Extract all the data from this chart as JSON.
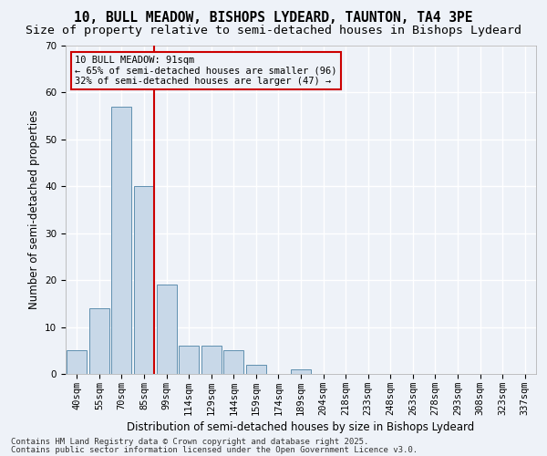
{
  "title1": "10, BULL MEADOW, BISHOPS LYDEARD, TAUNTON, TA4 3PE",
  "title2": "Size of property relative to semi-detached houses in Bishops Lydeard",
  "xlabel": "Distribution of semi-detached houses by size in Bishops Lydeard",
  "ylabel": "Number of semi-detached properties",
  "categories": [
    "40sqm",
    "55sqm",
    "70sqm",
    "85sqm",
    "99sqm",
    "114sqm",
    "129sqm",
    "144sqm",
    "159sqm",
    "174sqm",
    "189sqm",
    "204sqm",
    "218sqm",
    "233sqm",
    "248sqm",
    "263sqm",
    "278sqm",
    "293sqm",
    "308sqm",
    "323sqm",
    "337sqm"
  ],
  "values": [
    5,
    14,
    57,
    40,
    19,
    6,
    6,
    5,
    2,
    0,
    1,
    0,
    0,
    0,
    0,
    0,
    0,
    0,
    0,
    0,
    0
  ],
  "bar_color": "#c8d8e8",
  "bar_edge_color": "#6090b0",
  "ylim": [
    0,
    70
  ],
  "yticks": [
    0,
    10,
    20,
    30,
    40,
    50,
    60,
    70
  ],
  "property_bin_index": 3,
  "annotation_text": "10 BULL MEADOW: 91sqm\n← 65% of semi-detached houses are smaller (96)\n32% of semi-detached houses are larger (47) →",
  "vline_color": "#cc0000",
  "annotation_box_color": "#cc0000",
  "footnote1": "Contains HM Land Registry data © Crown copyright and database right 2025.",
  "footnote2": "Contains public sector information licensed under the Open Government Licence v3.0.",
  "background_color": "#eef2f8",
  "grid_color": "#ffffff",
  "title_fontsize": 10.5,
  "subtitle_fontsize": 9.5,
  "axis_label_fontsize": 8.5,
  "tick_fontsize": 7.5,
  "annotation_fontsize": 7.5,
  "footnote_fontsize": 6.5
}
